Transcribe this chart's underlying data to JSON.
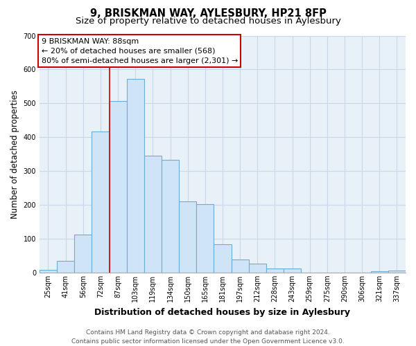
{
  "title": "9, BRISKMAN WAY, AYLESBURY, HP21 8FP",
  "subtitle": "Size of property relative to detached houses in Aylesbury",
  "xlabel": "Distribution of detached houses by size in Aylesbury",
  "ylabel": "Number of detached properties",
  "categories": [
    "25sqm",
    "41sqm",
    "56sqm",
    "72sqm",
    "87sqm",
    "103sqm",
    "119sqm",
    "134sqm",
    "150sqm",
    "165sqm",
    "181sqm",
    "197sqm",
    "212sqm",
    "228sqm",
    "243sqm",
    "259sqm",
    "275sqm",
    "290sqm",
    "306sqm",
    "321sqm",
    "337sqm"
  ],
  "values": [
    8,
    35,
    113,
    416,
    507,
    573,
    345,
    333,
    210,
    203,
    83,
    38,
    27,
    12,
    13,
    0,
    0,
    0,
    0,
    3,
    5
  ],
  "bar_fill_color": "#d0e4f7",
  "bar_edge_color": "#6aaed6",
  "highlight_bar_index": 4,
  "highlight_line_color": "#cc0000",
  "annotation_title": "9 BRISKMAN WAY: 88sqm",
  "annotation_line1": "← 20% of detached houses are smaller (568)",
  "annotation_line2": "80% of semi-detached houses are larger (2,301) →",
  "annotation_box_color": "#ffffff",
  "annotation_box_edge_color": "#cc0000",
  "ylim": [
    0,
    700
  ],
  "yticks": [
    0,
    100,
    200,
    300,
    400,
    500,
    600,
    700
  ],
  "footer_line1": "Contains HM Land Registry data © Crown copyright and database right 2024.",
  "footer_line2": "Contains public sector information licensed under the Open Government Licence v3.0.",
  "bg_color": "#ffffff",
  "grid_color": "#c8d8e8",
  "title_fontsize": 10.5,
  "subtitle_fontsize": 9.5,
  "xlabel_fontsize": 9,
  "ylabel_fontsize": 8.5,
  "tick_fontsize": 7,
  "annotation_fontsize": 8,
  "footer_fontsize": 6.5
}
